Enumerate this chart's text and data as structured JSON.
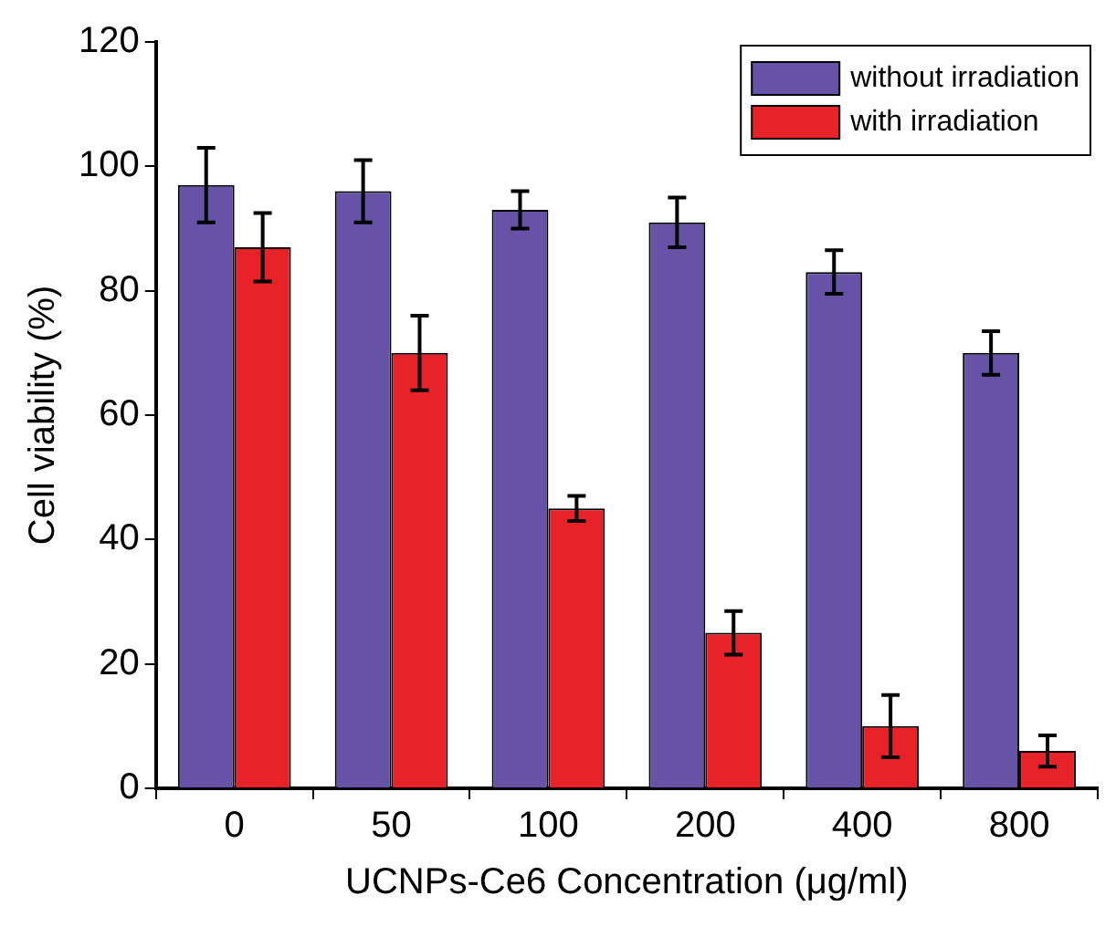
{
  "chart_data": {
    "type": "bar",
    "xlabel": "UCNPs-Ce6 Concentration (μg/ml)",
    "ylabel": "Cell viability (%)",
    "categories": [
      "0",
      "50",
      "100",
      "200",
      "400",
      "800"
    ],
    "series": [
      {
        "name": "without irradiation",
        "color": "#6653a8",
        "values": [
          97,
          96,
          93,
          91,
          83,
          70
        ],
        "errors": [
          6,
          5,
          3,
          4,
          3.5,
          3.5
        ]
      },
      {
        "name": "with irradiation",
        "color": "#e82229",
        "values": [
          87,
          70,
          45,
          25,
          10,
          6
        ],
        "errors": [
          5.5,
          6,
          2,
          3.5,
          5,
          2.5
        ]
      }
    ],
    "ylim": [
      0,
      120
    ],
    "yticks": [
      0,
      20,
      40,
      60,
      80,
      100,
      120
    ],
    "grid": false,
    "legend": "top right"
  }
}
